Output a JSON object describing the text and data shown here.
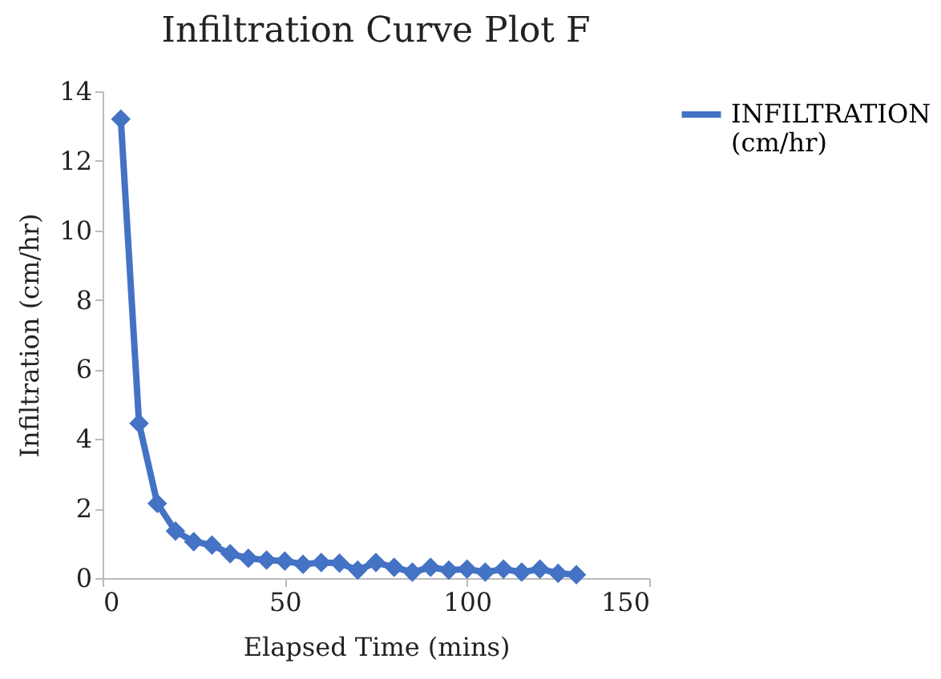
{
  "chart_data": {
    "type": "line",
    "title": "Infiltration Curve Plot F",
    "xlabel": "Elapsed Time (mins)",
    "ylabel": "Infiltration (cm/hr)",
    "x": [
      5,
      10,
      15,
      20,
      25,
      30,
      35,
      40,
      45,
      50,
      55,
      60,
      65,
      70,
      75,
      80,
      85,
      90,
      95,
      100,
      105,
      110,
      115,
      120,
      125,
      130
    ],
    "series": [
      {
        "name": "INFILTRATION (cm/hr)",
        "color": "#4472c4",
        "values": [
          13.2,
          4.45,
          2.15,
          1.35,
          1.05,
          0.95,
          0.7,
          0.57,
          0.52,
          0.49,
          0.4,
          0.45,
          0.43,
          0.23,
          0.45,
          0.31,
          0.17,
          0.31,
          0.23,
          0.26,
          0.17,
          0.26,
          0.17,
          0.26,
          0.14,
          0.1
        ]
      }
    ],
    "xlim": [
      0,
      150
    ],
    "xticks": [
      0,
      50,
      100,
      150
    ],
    "ylim": [
      0,
      14
    ],
    "yticks": [
      0,
      2,
      4,
      6,
      8,
      10,
      12,
      14
    ],
    "grid": false,
    "legend": "right",
    "marker": "diamond",
    "line_style": "solid"
  }
}
